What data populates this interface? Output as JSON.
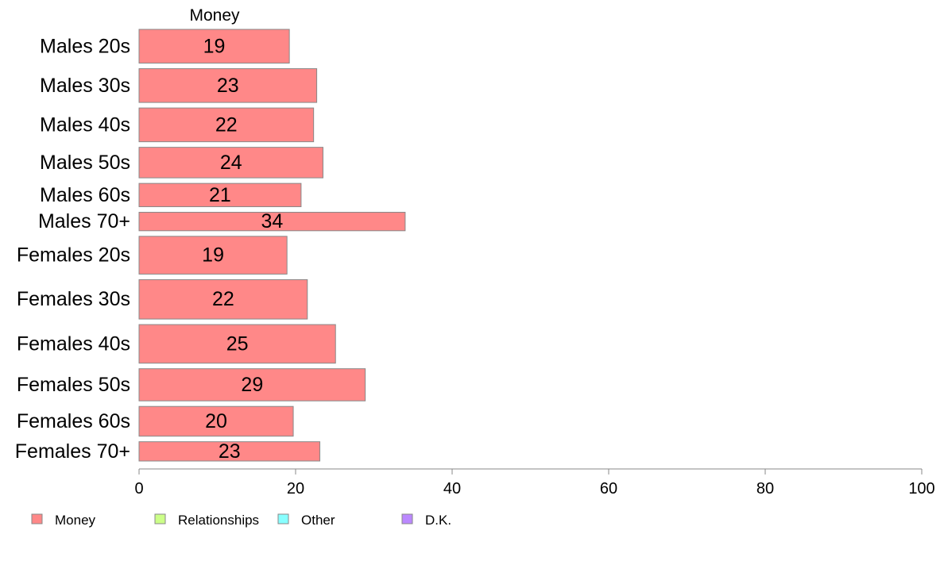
{
  "chart_data": {
    "type": "bar",
    "orientation": "horizontal",
    "series_title": "Money",
    "categories": [
      "Males 20s",
      "Males 30s",
      "Males 40s",
      "Males 50s",
      "Males 60s",
      "Males 70+",
      "Females 20s",
      "Females 30s",
      "Females 40s",
      "Females 50s",
      "Females 60s",
      "Females 70+"
    ],
    "series": [
      {
        "name": "Money",
        "color": "#ff8888",
        "values": [
          19.2,
          22.7,
          22.3,
          23.5,
          20.7,
          34.0,
          18.9,
          21.5,
          25.1,
          28.9,
          19.7,
          23.1
        ],
        "labels": [
          "19",
          "23",
          "22",
          "24",
          "21",
          "34",
          "19",
          "22",
          "25",
          "29",
          "20",
          "23"
        ]
      }
    ],
    "relative_bar_widths": [
      42,
      42,
      42,
      38,
      29,
      23,
      47,
      49,
      48,
      40,
      37,
      24
    ],
    "xlim": [
      0,
      100
    ],
    "xticks": [
      "0",
      "20",
      "40",
      "60",
      "80",
      "100"
    ],
    "grid": false,
    "legend_position": "bottom-left",
    "legend": [
      {
        "name": "Money",
        "color": "#ff8888"
      },
      {
        "name": "Relationships",
        "color": "#ccff88"
      },
      {
        "name": "Other",
        "color": "#88ffff"
      },
      {
        "name": "D.K.",
        "color": "#bb88ff"
      }
    ]
  }
}
